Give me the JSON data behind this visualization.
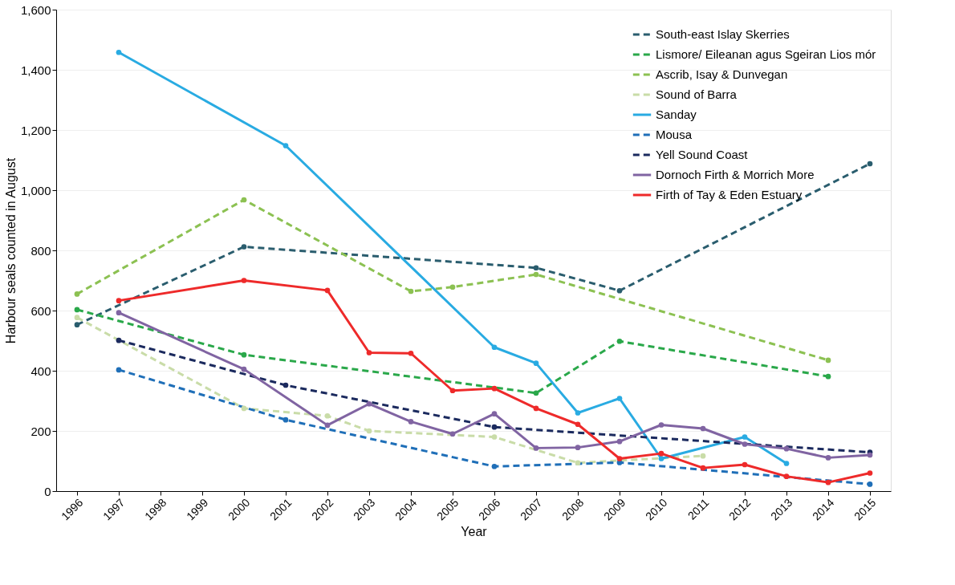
{
  "chart_data": {
    "type": "line",
    "xlabel": "Year",
    "ylabel": "Harbour seals counted in August",
    "categories": [
      "1996",
      "1997",
      "1998",
      "1999",
      "2000",
      "2001",
      "2002",
      "2003",
      "2004",
      "2005",
      "2006",
      "2007",
      "2008",
      "2009",
      "2010",
      "2011",
      "2012",
      "2013",
      "2014",
      "2015"
    ],
    "ylim": [
      0,
      1600
    ],
    "yticks": [
      0,
      200,
      400,
      600,
      800,
      {
        "value": 1000,
        "label": "1,000"
      },
      {
        "value": 1200,
        "label": "1,200"
      },
      {
        "value": 1400,
        "label": "1,400"
      },
      {
        "value": 1600,
        "label": "1,600"
      }
    ],
    "grid": "y",
    "legend": "top right",
    "marker": "circle",
    "series": [
      {
        "name": "South-east Islay Skerries",
        "color": "#2a5d6e",
        "line_style": "dashed",
        "values": [
          553,
          null,
          null,
          null,
          812,
          null,
          null,
          null,
          null,
          null,
          null,
          742,
          null,
          666,
          null,
          null,
          null,
          null,
          null,
          1088
        ]
      },
      {
        "name": "Lismore/ Eileanan agus Sgeiran Lios mór",
        "color": "#2aa84a",
        "line_style": "dashed",
        "values": [
          603,
          null,
          null,
          null,
          453,
          null,
          null,
          null,
          null,
          null,
          null,
          326,
          null,
          498,
          null,
          null,
          null,
          null,
          381,
          null
        ]
      },
      {
        "name": "Ascrib, Isay & Dunvegan",
        "color": "#8cc152",
        "line_style": "dashed",
        "values": [
          655,
          null,
          null,
          null,
          968,
          null,
          null,
          null,
          664,
          678,
          null,
          720,
          null,
          null,
          null,
          null,
          null,
          null,
          435,
          null
        ]
      },
      {
        "name": "Sound of Barra",
        "color": "#c9dca8",
        "line_style": "dashed",
        "values": [
          577,
          null,
          null,
          null,
          275,
          null,
          250,
          200,
          null,
          null,
          180,
          null,
          94,
          null,
          null,
          117,
          null,
          null,
          null,
          null
        ]
      },
      {
        "name": "Sanday",
        "color": "#29abe2",
        "line_style": "solid",
        "values": [
          null,
          1458,
          null,
          null,
          null,
          1148,
          null,
          null,
          null,
          null,
          478,
          425,
          260,
          308,
          108,
          null,
          180,
          92,
          null,
          null
        ]
      },
      {
        "name": "Mousa",
        "color": "#1f6fb8",
        "line_style": "dashed",
        "values": [
          null,
          403,
          null,
          null,
          null,
          237,
          null,
          null,
          null,
          null,
          82,
          null,
          null,
          95,
          null,
          null,
          null,
          null,
          null,
          23
        ]
      },
      {
        "name": "Yell Sound Coast",
        "color": "#1b2a5e",
        "line_style": "dashed",
        "values": [
          null,
          501,
          null,
          null,
          null,
          352,
          null,
          null,
          null,
          null,
          213,
          null,
          null,
          null,
          null,
          null,
          null,
          null,
          null,
          129
        ]
      },
      {
        "name": "Dornoch Firth & Morrich More",
        "color": "#8064a2",
        "line_style": "solid",
        "values": [
          null,
          593,
          null,
          null,
          405,
          null,
          219,
          290,
          231,
          190,
          257,
          143,
          145,
          165,
          220,
          208,
          156,
          141,
          111,
          120
        ]
      },
      {
        "name": "Firth of Tay & Eden Estuary",
        "color": "#ee2a2a",
        "line_style": "solid",
        "values": [
          null,
          633,
          null,
          null,
          700,
          null,
          667,
          460,
          458,
          334,
          341,
          275,
          222,
          108,
          125,
          77,
          88,
          49,
          29,
          60
        ]
      }
    ]
  }
}
